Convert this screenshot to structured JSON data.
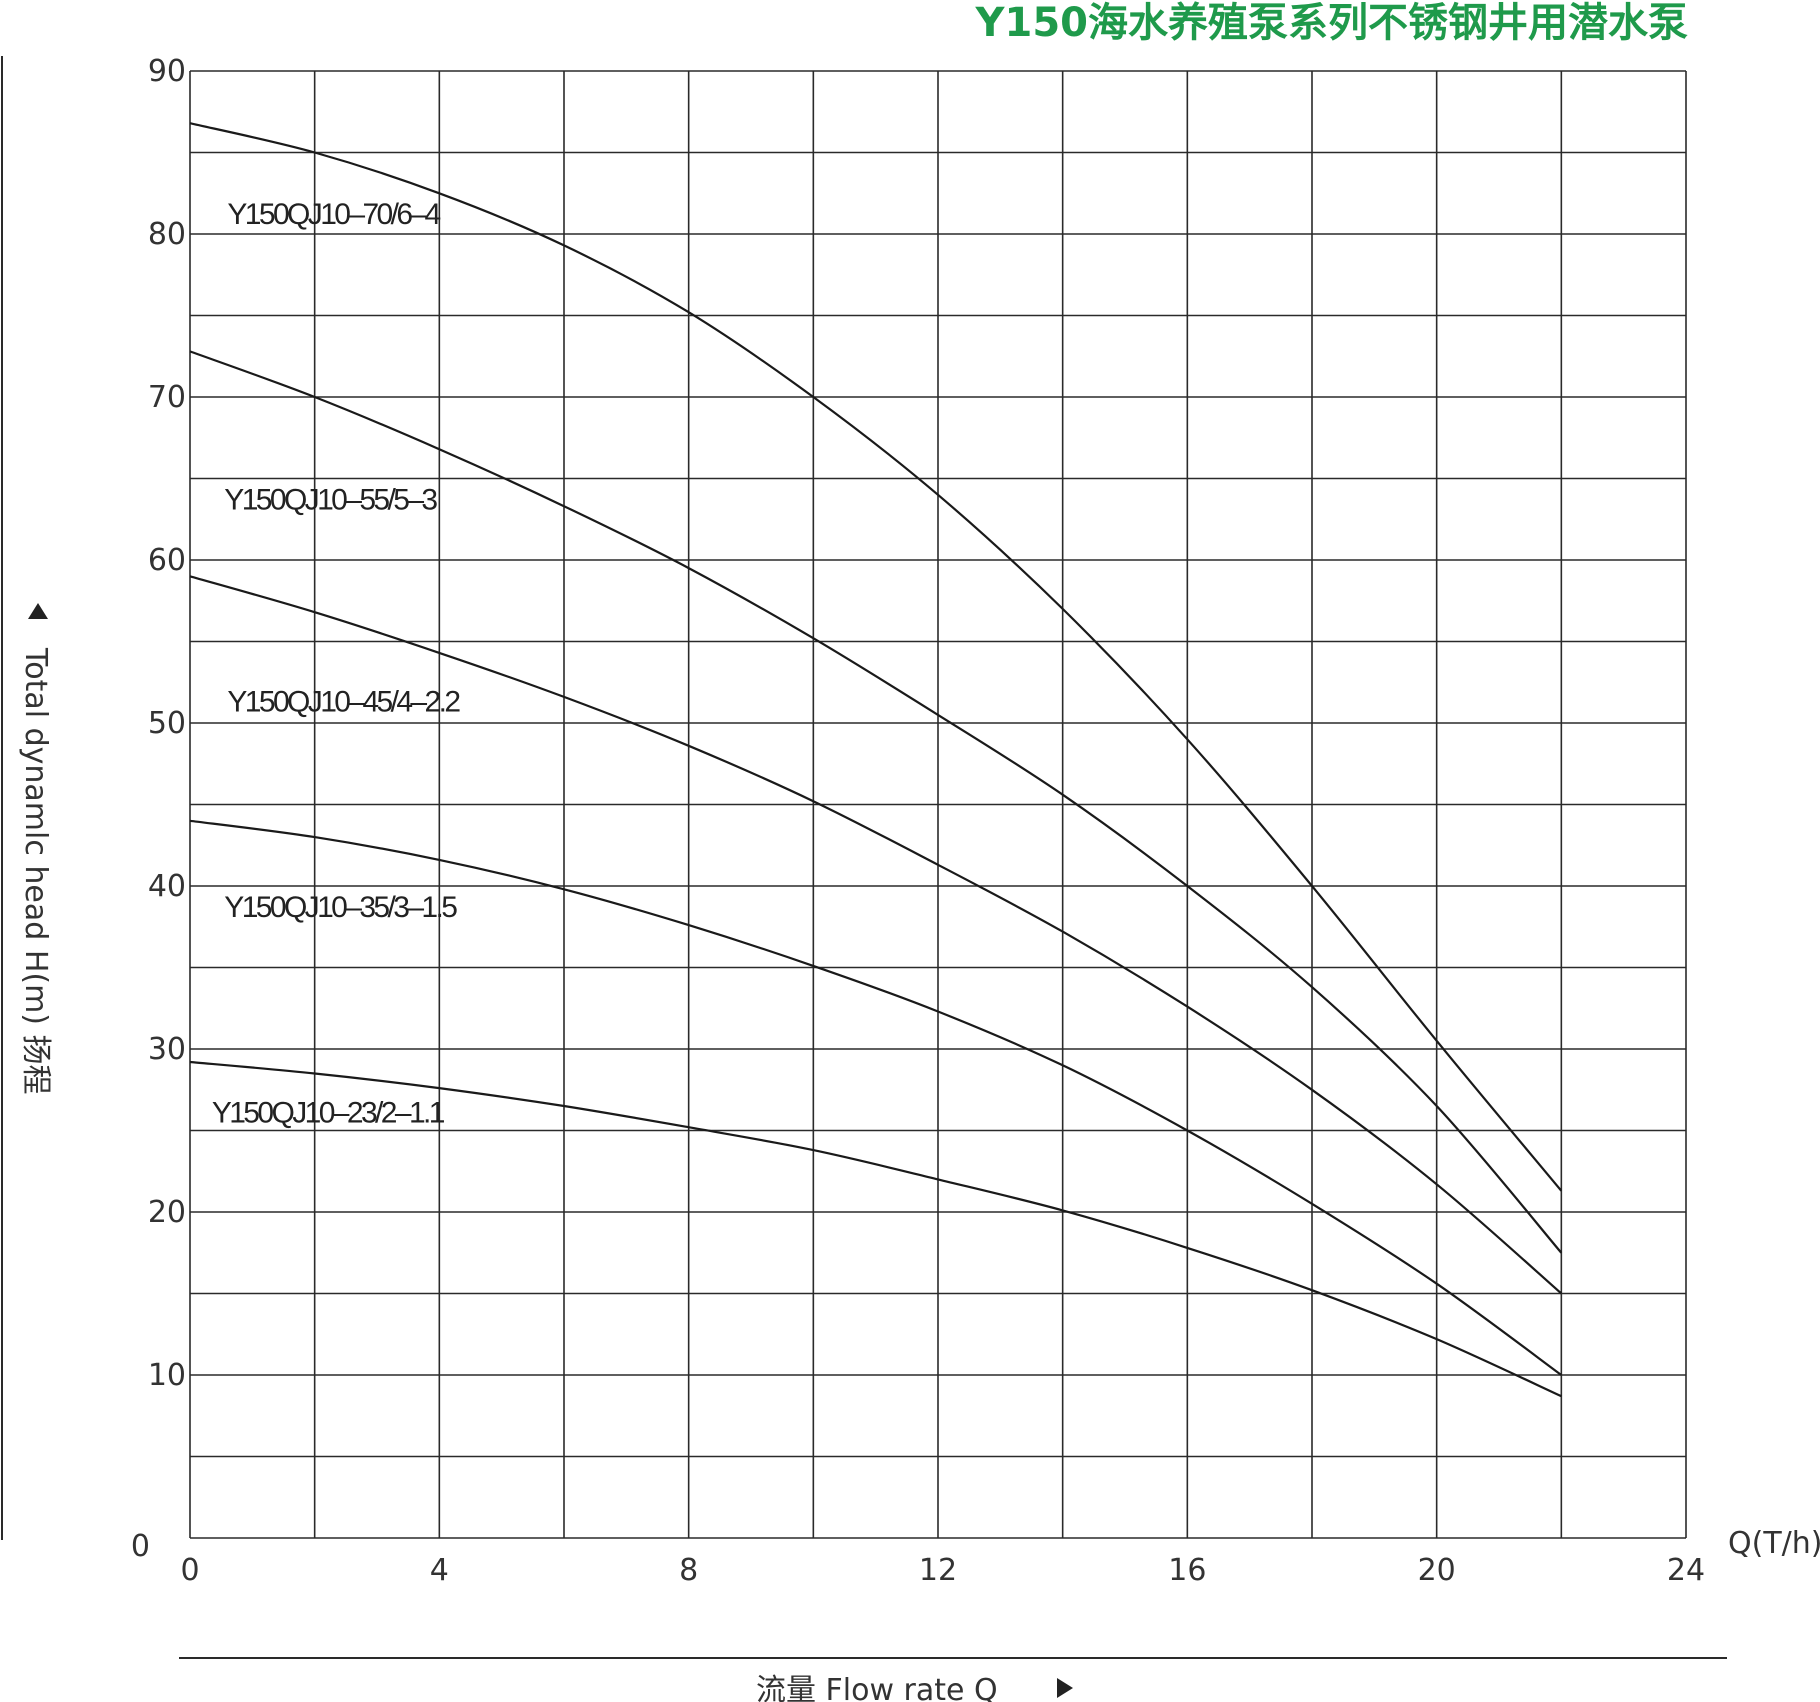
{
  "title": "Y150海水养殖泵系列不锈钢井用潜水泵",
  "colors": {
    "title": "#1f9a4b",
    "grid": "#2a2a2a",
    "curve": "#1a1a1a",
    "text": "#333333"
  },
  "chart_data": {
    "type": "line",
    "title": "Y150海水养殖泵系列不锈钢井用潜水泵",
    "xlabel": "流量 Flow rate Q",
    "xunit": "Q(T/h)",
    "ylabel": "Total dynamlc head H(m) 扬程",
    "xlim": [
      0,
      24
    ],
    "ylim": [
      0,
      90
    ],
    "xticks": [
      "0",
      "4",
      "8",
      "12",
      "16",
      "20",
      "24"
    ],
    "yticks": [
      "0",
      "10",
      "20",
      "30",
      "40",
      "50",
      "60",
      "70",
      "80",
      "90"
    ],
    "x_minor_step": 2,
    "y_minor_step": 5,
    "grid": true,
    "series": [
      {
        "name": "Y150QJ10–70/6–4",
        "label_at": [
          0.6,
          80.6
        ],
        "x": [
          0,
          2,
          4,
          6,
          8,
          10,
          12,
          14,
          16,
          18,
          20,
          22
        ],
        "y": [
          86.8,
          85.0,
          82.5,
          79.3,
          75.2,
          70.0,
          64.0,
          57.0,
          49.0,
          40.0,
          30.5,
          21.3
        ]
      },
      {
        "name": "Y150QJ10–55/5–3",
        "label_at": [
          0.55,
          63.1
        ],
        "x": [
          0,
          2,
          4,
          6,
          8,
          10,
          12,
          14,
          16,
          18,
          20,
          22
        ],
        "y": [
          72.8,
          70.0,
          66.8,
          63.3,
          59.5,
          55.2,
          50.5,
          45.6,
          40.0,
          33.8,
          26.5,
          17.5
        ]
      },
      {
        "name": "Y150QJ10–45/4–2.2",
        "label_at": [
          0.6,
          50.7
        ],
        "x": [
          0,
          2,
          4,
          6,
          8,
          10,
          12,
          14,
          16,
          18,
          20,
          22
        ],
        "y": [
          59.0,
          56.8,
          54.3,
          51.6,
          48.6,
          45.2,
          41.3,
          37.2,
          32.6,
          27.5,
          21.7,
          15.0
        ]
      },
      {
        "name": "Y150QJ10–35/3–1.5",
        "label_at": [
          0.55,
          38.1
        ],
        "x": [
          0,
          2,
          4,
          6,
          8,
          10,
          12,
          14,
          16,
          18,
          20,
          22
        ],
        "y": [
          44.0,
          43.0,
          41.6,
          39.8,
          37.6,
          35.1,
          32.3,
          29.0,
          25.0,
          20.5,
          15.6,
          10.0
        ]
      },
      {
        "name": "Y150QJ10–23/2–1.1",
        "label_at": [
          0.35,
          25.5
        ],
        "x": [
          0,
          2,
          4,
          6,
          8,
          10,
          12,
          14,
          16,
          18,
          20,
          22
        ],
        "y": [
          29.2,
          28.5,
          27.6,
          26.5,
          25.2,
          23.8,
          22.0,
          20.1,
          17.8,
          15.2,
          12.2,
          8.7
        ]
      }
    ]
  }
}
